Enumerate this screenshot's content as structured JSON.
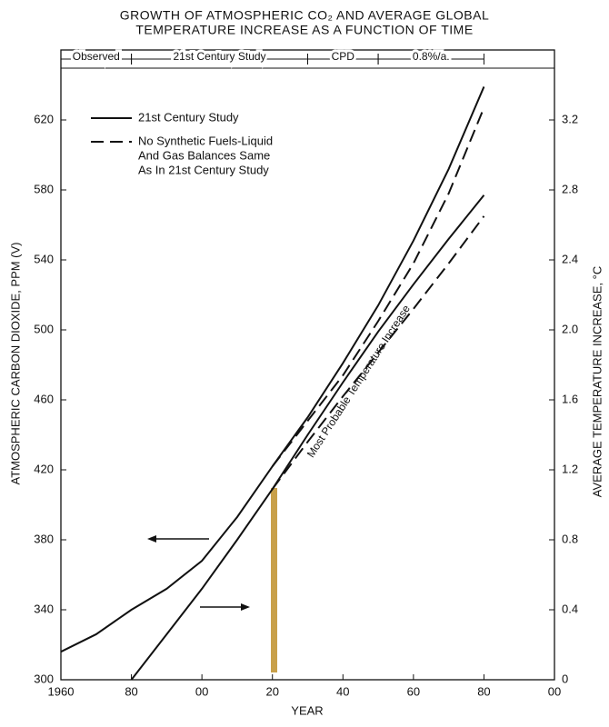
{
  "chart_data": {
    "type": "line",
    "title": [
      "GROWTH OF ATMOSPHERIC CO₂ AND AVERAGE GLOBAL",
      "TEMPERATURE INCREASE AS A FUNCTION OF TIME"
    ],
    "x_label": "YEAR",
    "y_label": "ATMOSPHERIC CARBON DIOXIDE, PPM (V)",
    "y2_label": "AVERAGE TEMPERATURE INCREASE, °C",
    "x": [
      1960,
      1970,
      1980,
      1990,
      2000,
      2010,
      2020,
      2030,
      2040,
      2050,
      2060,
      2070,
      2080
    ],
    "xlim": [
      1960,
      2100
    ],
    "xticks": [
      {
        "value": 1960,
        "label": "1960"
      },
      {
        "value": 1980,
        "label": "80"
      },
      {
        "value": 2000,
        "label": "00"
      },
      {
        "value": 2020,
        "label": "20"
      },
      {
        "value": 2040,
        "label": "40"
      },
      {
        "value": 2060,
        "label": "60"
      },
      {
        "value": 2080,
        "label": "80"
      },
      {
        "value": 2100,
        "label": "00"
      }
    ],
    "ylim": [
      300,
      660
    ],
    "yticks": [
      300,
      340,
      380,
      420,
      460,
      500,
      540,
      580,
      620
    ],
    "y2lim": [
      0,
      3.6
    ],
    "y2ticks": [
      0,
      0.4,
      0.8,
      1.2,
      1.6,
      {
        "value": 2,
        "label": "2.0"
      },
      2.4,
      2.8,
      3.2
    ],
    "legend": "upper-left",
    "series": [
      {
        "name": "21st Century Study",
        "color": "#111111",
        "dash": false,
        "axis": "y",
        "values": [
          316,
          326,
          340,
          352,
          368,
          393,
          422,
          450,
          481,
          514,
          551,
          592,
          639
        ]
      },
      {
        "name": [
          "No Synthetic Fuels-Liquid",
          "And Gas Balances Same",
          "As In 21st Century Study"
        ],
        "color": "#111111",
        "dash": true,
        "axis": "y",
        "values": [
          null,
          null,
          null,
          null,
          null,
          null,
          422,
          448,
          474,
          505,
          538,
          578,
          627
        ]
      },
      {
        "color": "#111111",
        "dash": false,
        "axis": "y2",
        "values": [
          null,
          null,
          0,
          0.26,
          0.52,
          0.8,
          1.09,
          1.4,
          1.7,
          1.99,
          2.26,
          2.52,
          2.77
        ]
      },
      {
        "color": "#111111",
        "dash": true,
        "axis": "y2",
        "values": [
          null,
          null,
          null,
          null,
          null,
          null,
          1.09,
          1.36,
          1.62,
          1.87,
          2.12,
          2.38,
          2.65
        ]
      }
    ],
    "phases": [
      {
        "label": "Observed",
        "start": 1960,
        "end": 1980
      },
      {
        "label": "21st Century Study",
        "start": 1980,
        "end": 2030
      },
      {
        "label": "CPD",
        "start": 2030,
        "end": 2050
      },
      {
        "label": "0.8%/a.",
        "start": 2050,
        "end": 2080
      }
    ],
    "annotation": "Most Probable Temperature Increase"
  }
}
